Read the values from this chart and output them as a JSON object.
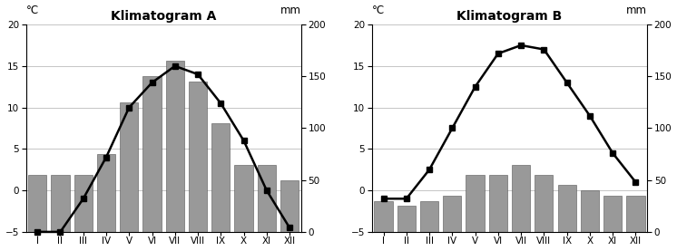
{
  "A": {
    "title": "Klimatogram A",
    "months": [
      "I",
      "II",
      "III",
      "IV",
      "V",
      "VI",
      "VII",
      "VIII",
      "IX",
      "X",
      "XI",
      "XII"
    ],
    "temp": [
      -5,
      -5,
      -1,
      4,
      10,
      13,
      15,
      14,
      10.5,
      6,
      0,
      -4.5
    ],
    "precip": [
      55,
      55,
      55,
      75,
      125,
      150,
      165,
      145,
      105,
      65,
      65,
      50
    ],
    "bar_color": "#999999",
    "line_color": "#000000",
    "ylim_temp": [
      -5,
      20
    ],
    "ylim_precip": [
      0,
      200
    ],
    "yticks_temp": [
      -5,
      0,
      5,
      10,
      15,
      20
    ],
    "yticks_precip": [
      0,
      50,
      100,
      150,
      200
    ]
  },
  "B": {
    "title": "Klimatogram B",
    "months": [
      "I",
      "II",
      "III",
      "IV",
      "V",
      "VI",
      "VII",
      "VIII",
      "IX",
      "X",
      "XI",
      "XII"
    ],
    "temp": [
      -1,
      -1,
      2.5,
      7.5,
      12.5,
      16.5,
      17.5,
      17,
      13,
      9,
      4.5,
      1
    ],
    "precip": [
      30,
      25,
      30,
      35,
      55,
      55,
      65,
      55,
      45,
      40,
      35,
      35
    ],
    "bar_color": "#999999",
    "line_color": "#000000",
    "ylim_temp": [
      -5,
      20
    ],
    "ylim_precip": [
      0,
      200
    ],
    "yticks_temp": [
      -5,
      0,
      5,
      10,
      15,
      20
    ],
    "yticks_precip": [
      0,
      50,
      100,
      150,
      200
    ]
  },
  "background_color": "#ffffff",
  "title_fontsize": 10,
  "tick_fontsize": 7.5,
  "label_fontsize": 8.5,
  "temp_min": -5,
  "temp_max": 20,
  "precip_min": 0,
  "precip_max": 200
}
